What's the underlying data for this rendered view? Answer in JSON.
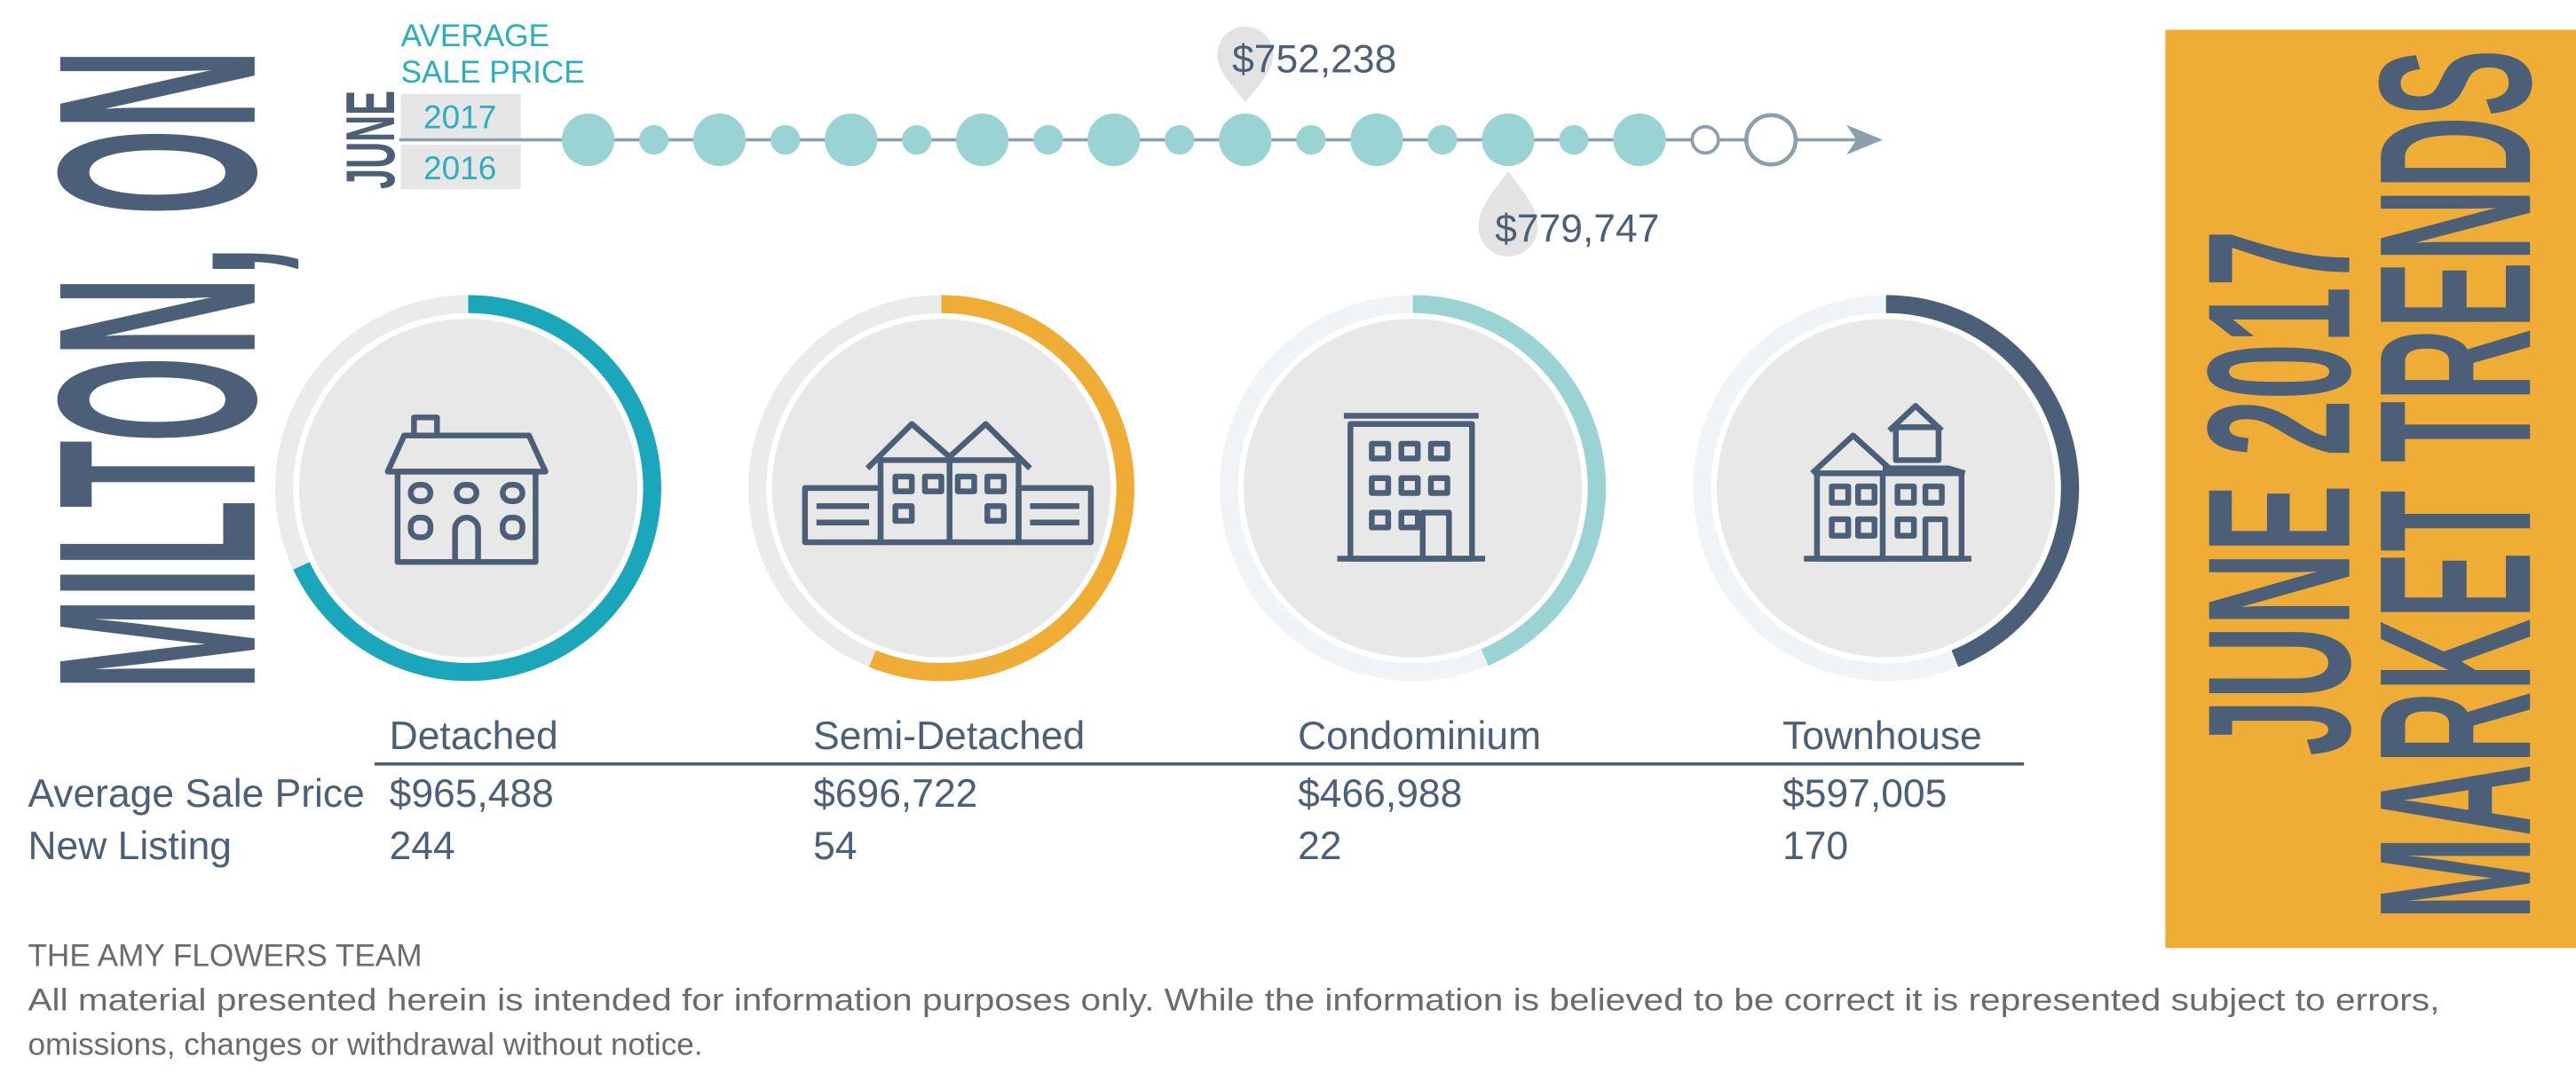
{
  "title": "MILTON, ON",
  "badge": {
    "line1": "JUNE 2017",
    "line2": "MARKET TRENDS"
  },
  "timeline": {
    "month": "JUNE",
    "label_lines": [
      "AVERAGE",
      "SALE PRICE"
    ],
    "years": [
      "2017",
      "2016"
    ],
    "price_2017": "$752,238",
    "price_2016": "$779,747"
  },
  "table": {
    "columns": [
      "Detached",
      "Semi-Detached",
      "Condominium",
      "Townhouse"
    ],
    "row_labels": [
      "Average Sale Price",
      "New Listing"
    ],
    "rows": [
      [
        "$965,488",
        "$696,722",
        "$466,988",
        "$597,005"
      ],
      [
        244,
        54,
        22,
        170
      ]
    ]
  },
  "footer": {
    "team": "THE AMY FLOWERS TEAM",
    "disclaimer_lines": [
      "All material presented herein is intended for information purposes only. While the information is believed to be correct it is represented subject to errors,",
      "omissions, changes or withdrawal without notice."
    ]
  }
}
